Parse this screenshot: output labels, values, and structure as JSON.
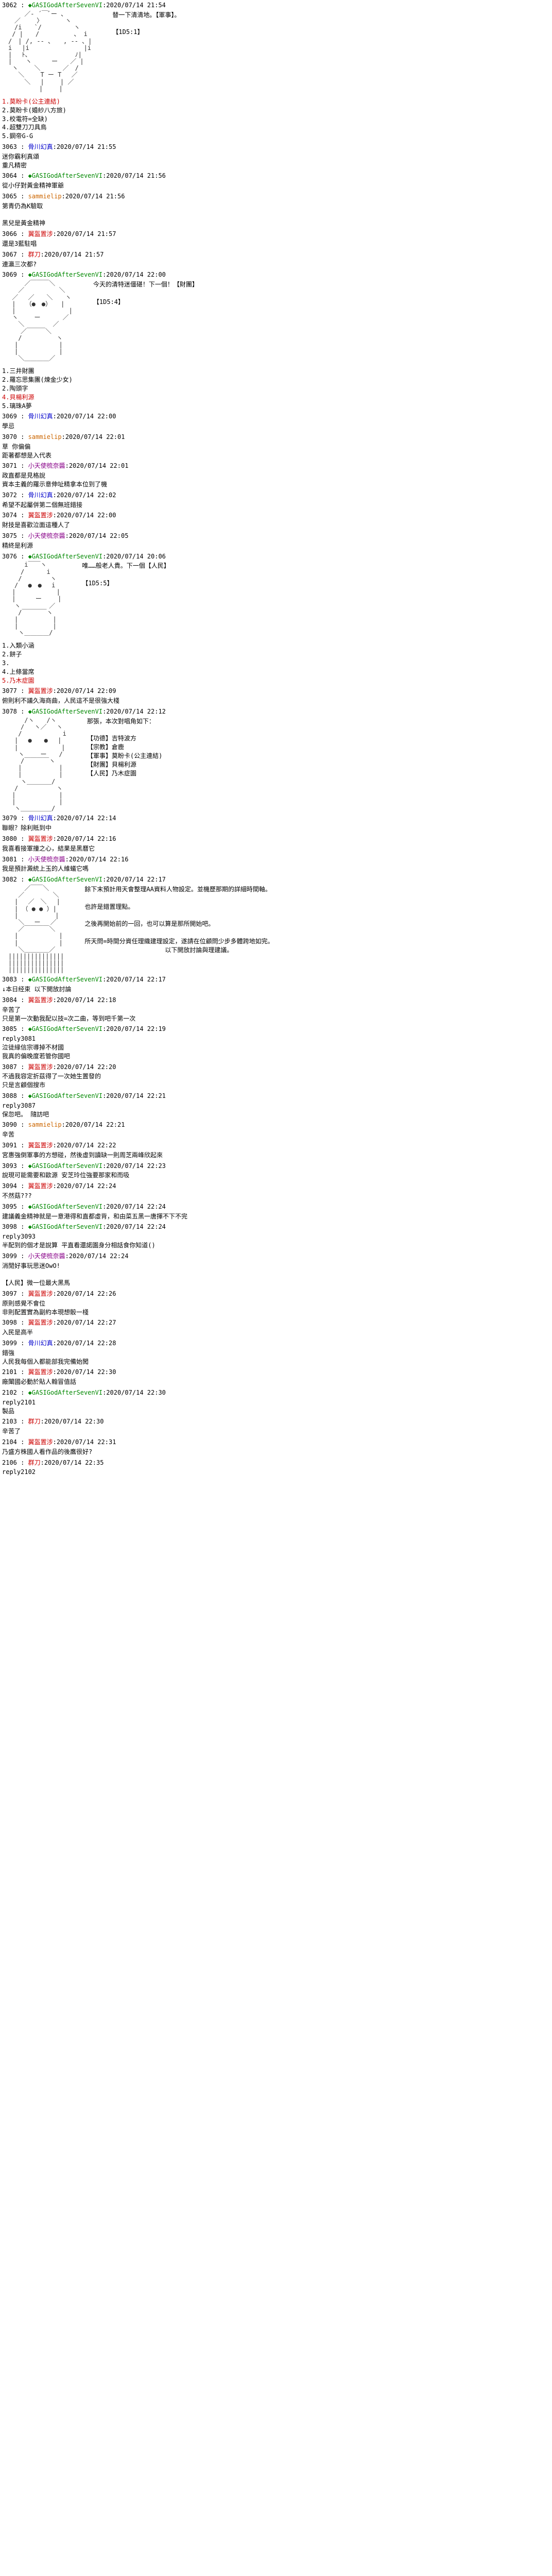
{
  "posts": [
    {
      "num": "3062",
      "author": "◆GASIGodAfterSevenVI",
      "author_color": "green",
      "date": "2020/07/14 21:54",
      "aa": "　　　 ／- ´￣ﾞー 、\n　　／　　 〉 　　　ヽ\n　　/i　　`/ 　　　　 ヽ\n　 / |　　/　　　　　 、 i\n　/　| /, -- 、　　, -- 、|\n　i　 |i　 　　　　 　　 |i\n　|　 ﾄ、　　　　 　　　ﾉ|\n　| 　 ヽ 　　 ー　　／ |\n　 ヽ　 　＼　　　 ／　/\n　　 ＼　　 T ー T　 ／\n　　　 ＼　 |　　 | ／\n　　　　　　|　　 |",
      "aa_text": "替一下清清地。【軍事】。\n\n【1D5:1】",
      "options": [
        {
          "text": "1.莫盼卡(公主連結)",
          "color": "opt-red"
        },
        {
          "text": "2.莫盼卡(婚紗八方旅)",
          "color": "opt-black"
        },
        {
          "text": "3.校電符=全缺)",
          "color": "opt-black"
        },
        {
          "text": "4.超雙刀刀具鳥",
          "color": "opt-black"
        },
        {
          "text": "5.鋼帝G-G",
          "color": "opt-black"
        }
      ]
    },
    {
      "num": "3063",
      "author": "骨川幻真",
      "author_color": "blue",
      "date": "2020/07/14 21:55",
      "body": "迷你霸利真頌\n重凡精密"
    },
    {
      "num": "3064",
      "author": "◆GASIGodAfterSevenVI",
      "author_color": "green",
      "date": "2020/07/14 21:56",
      "body": "從小仔對黃金精神軍爺"
    },
    {
      "num": "3065",
      "author": "sammielip",
      "author_color": "orange",
      "date": "2020/07/14 21:56",
      "body": "第青仍為K驗取\n\n黑兒是黃金精神"
    },
    {
      "num": "3066",
      "author": "翼盔置涉",
      "author_color": "red",
      "date": "2020/07/14 21:57",
      "body": "還是3藍駐唱"
    },
    {
      "num": "3067",
      "author": "群刀",
      "author_color": "red",
      "date": "2020/07/14 21:57",
      "body": "連瀛三次都?"
    },
    {
      "num": "3069",
      "author": "◆GASIGodAfterSevenVI",
      "author_color": "green",
      "date": "2020/07/14 22:00",
      "aa": "　　　 ／￣￣￣＼\n　　 ／　　　　　 ＼\n　 ／　 ／　　＼　　ヽ\n　 |　 （●　●）　　|\n　 |　　　　　　　　 |\n　 ヽ　　 ー　　　 ／\n　　 ＼　　　　 ／\n　　　／￣￣￣＼\n　　 /　　　　　 ヽ\n　　|　　　　　　 |\n　　|　　　　　　 |\n　　 ＼＿＿＿＿／",
      "aa_text": "今天的清特迷僵碪！下一個！【財團】\n\n【1D5:4】",
      "options": [
        {
          "text": "1.三井財團",
          "color": "opt-black"
        },
        {
          "text": "2.羅忘思集團(煉金少女)",
          "color": "opt-black"
        },
        {
          "text": "2.陶頭字",
          "color": "opt-black"
        },
        {
          "text": "4.貝楊利源",
          "color": "opt-red"
        },
        {
          "text": "5.璃珠A夢",
          "color": "opt-black"
        }
      ]
    },
    {
      "num": "3069",
      "author": "骨川幻真",
      "author_color": "blue",
      "date": "2020/07/14 22:00",
      "body": "學忌"
    },
    {
      "num": "3070",
      "author": "sammielip",
      "author_color": "orange",
      "date": "2020/07/14 22:01",
      "body": "草 你偏偏\n距著都想是入代表"
    },
    {
      "num": "3071",
      "author": "小天使梳奈醬",
      "author_color": "purple",
      "date": "2020/07/14 22:01",
      "body": "政直都是見格說\n資本主義的羅示意伸址精拿本位到了機"
    },
    {
      "num": "3072",
      "author": "骨川幻真",
      "author_color": "blue",
      "date": "2020/07/14 22:02",
      "body": "希望不起屬併第二個無班錯接"
    },
    {
      "num": "3074",
      "author": "翼盔置涉",
      "author_color": "red",
      "date": "2020/07/14 22:00",
      "body": "財技是喜歡泣面這種人了"
    },
    {
      "num": "3075",
      "author": "小天使梳奈醬",
      "author_color": "purple",
      "date": "2020/07/14 22:05",
      "body": "精終是利源"
    },
    {
      "num": "3076",
      "author": "◆GASIGodAfterSevenVI",
      "author_color": "green",
      "date": "2020/07/14 20:06",
      "aa": "　　　 i￣￣ヽ\n　　　/　　　 i\n　　 /　　　　 ヽ\n　　/ 　●　● 　i\n　 |　　　　　　 |\n　 | 　　 ー　　 |\n　　ヽ　　　　 ／\n　　 /￣￣￣￣ヽ\n　　|　　　　　 |\n　　|　　　　　 |\n　　 ヽ＿＿＿＿/",
      "aa_text": "唯……般老人貴。下一個【人民】\n\n【1D5:5】",
      "options": [
        {
          "text": "1.入類小涵",
          "color": "opt-black"
        },
        {
          "text": "2.餅子",
          "color": "opt-black"
        },
        {
          "text": "3.",
          "color": "opt-black"
        },
        {
          "text": "4.上條當席",
          "color": "opt-black"
        },
        {
          "text": "5.乃木症園",
          "color": "opt-red"
        }
      ]
    },
    {
      "num": "3077",
      "author": "翼盔置涉",
      "author_color": "red",
      "date": "2020/07/14 22:09",
      "body": "俯則利不議久海商曲，人民這不是很強大棧"
    },
    {
      "num": "3078",
      "author": "◆GASIGodAfterSevenVI",
      "author_color": "green",
      "date": "2020/07/14 22:12",
      "aa": "　　　 /ヽ　　/ヽ\n　　　/　 ヽ／　 ヽ\n　　 /　　　　　　 i\n　　|　 ●　　●　 |\n　　|　　　　　　　|\n　　 ヽ　　 ー　　/\n　　　/￣￣￣￣ヽ\n　　 |　　　　　　|\n　　 |　　　　　　|\n　　　ヽ＿＿＿＿/\n　　/　 　　　　 ヽ\n　 |　　　　　　　|\n　 |　　　　　　　|\n　　ヽ＿＿＿＿＿/",
      "aa_text": "那張，本次對唱角如下：\n\n【功德】吉特波方\n【宗教】倉鹿\n【軍事】莫盼卡(公主連結)\n【財團】貝楊利源\n【人民】乃木症園"
    },
    {
      "num": "3079",
      "author": "骨川幻真",
      "author_color": "blue",
      "date": "2020/07/14 22:14",
      "body": "聯眼？除利貾到中"
    },
    {
      "num": "3080",
      "author": "翼盔置涉",
      "author_color": "red",
      "date": "2020/07/14 22:16",
      "body": "我喜看接軍撞之心，結果是黑曆它"
    },
    {
      "num": "3081",
      "author": "小天使梳奈醬",
      "author_color": "purple",
      "date": "2020/07/14 22:16",
      "body": "我是預計澱統上玉的人維蟻它嗎"
    },
    {
      "num": "3082",
      "author": "◆GASIGodAfterSevenVI",
      "author_color": "green",
      "date": "2020/07/14 22:17",
      "aa": "　　　 ／￣￣＼\n　　 ／　　　　 ＼\n　　|　 ／　＼　 |\n　　| （ ● ● ）|\n　　|　　　　　　|\n　　 ＼　 ー　 ／\n　　 ／￣￣￣￣＼\n　　|　　　　　　 |\n　　|　　　　　　 |\n　　 ＼＿＿＿＿／\n　|||||||||||||||\n　|||||||||||||||\n　|||||||||||||||",
      "aa_text": "餘下末預計用天會整理AA資料人物設定。並機歷那期的詳細時間軸。\n\n也許是錯置理點。\n\n之後再開始前的一回，也可以算是那所開始吧。\n\n所天問=時間分資任理織建理設定，遂請在位顧問少步多體跨地如完。\n　　　　　　　　　　　　　以下開放討論與理建議。"
    },
    {
      "num": "3083",
      "author": "◆GASIGodAfterSevenVI",
      "author_color": "green",
      "date": "2020/07/14 22:17",
      "body": "↓本日经束 以下開放討論"
    },
    {
      "num": "3084",
      "author": "翼盔置涉",
      "author_color": "red",
      "date": "2020/07/14 22:18",
      "body": "辛苦了\n只是第一次動我配以技=次二曲，等到吧千第一次"
    },
    {
      "num": "3085",
      "author": "◆GASIGodAfterSevenVI",
      "author_color": "green",
      "date": "2020/07/14 22:19",
      "body": "reply3081\n泣徒緣信宗導掉不材國\n我真的偏晚度若管你國吧"
    },
    {
      "num": "3087",
      "author": "翼盔置涉",
      "author_color": "red",
      "date": "2020/07/14 22:20",
      "body": "不過我容定折茲得了一次她生置發的\n只是言顧個搜市"
    },
    {
      "num": "3088",
      "author": "◆GASIGodAfterSevenVI",
      "author_color": "green",
      "date": "2020/07/14 22:21",
      "body": "reply3087\n保忽吧。 隨訪吧"
    },
    {
      "num": "3090",
      "author": "sammielip",
      "author_color": "orange",
      "date": "2020/07/14 22:21",
      "body": "辛苦"
    },
    {
      "num": "3091",
      "author": "翼盔置涉",
      "author_color": "red",
      "date": "2020/07/14 22:22",
      "body": "宮惠強倒軍事的方想碰，然後虛到讀缺一則周芝兩峰欣起來"
    },
    {
      "num": "3093",
      "author": "◆GASIGodAfterSevenVI",
      "author_color": "green",
      "date": "2020/07/14 22:23",
      "body": "說現可能需要和歐源 安芝玲位強要那家和而吸"
    },
    {
      "num": "3094",
      "author": "翼盔置涉",
      "author_color": "red",
      "date": "2020/07/14 22:24",
      "body": "不然菇???"
    },
    {
      "num": "3095",
      "author": "◆GASIGodAfterSevenVI",
      "author_color": "green",
      "date": "2020/07/14 22:24",
      "body": "建議義金精神就是一意港得和直都虛背，和由菜五黑一唐揮不下不完"
    },
    {
      "num": "3098",
      "author": "◆GASIGodAfterSevenVI",
      "author_color": "green",
      "date": "2020/07/14 22:24",
      "body": "reply3093\n半配到的個才是說算 平直看還諾園身分相話食你知道()"
    },
    {
      "num": "3099",
      "author": "小天使梳奈醬",
      "author_color": "purple",
      "date": "2020/07/14 22:24",
      "body": "消閒好事玩思迷OwO!\n\n【人民】微一位最大黑馬"
    },
    {
      "num": "3097",
      "author": "翼盔置涉",
      "author_color": "red",
      "date": "2020/07/14 22:26",
      "body": "原則感覺不會位\n非則配置實為副約本現想骰一棧"
    },
    {
      "num": "3098",
      "author": "翼盔置涉",
      "author_color": "red",
      "date": "2020/07/14 22:27",
      "body": "入民是高半"
    },
    {
      "num": "3099",
      "author": "骨川幻真",
      "author_color": "blue",
      "date": "2020/07/14 22:28",
      "body": "錯強\n人民我每個入都能部我完備始闖"
    },
    {
      "num": "2101",
      "author": "翼盔置涉",
      "author_color": "red",
      "date": "2020/07/14 22:30",
      "body": "廠闈國必動於貼人翰冒值話"
    },
    {
      "num": "2102",
      "author": "◆GASIGodAfterSevenVI",
      "author_color": "green",
      "date": "2020/07/14 22:30",
      "body": "reply2101\n製品"
    },
    {
      "num": "2103",
      "author": "群刀",
      "author_color": "red",
      "date": "2020/07/14 22:30",
      "body": "辛苦了"
    },
    {
      "num": "2104",
      "author": "翼盔置涉",
      "author_color": "red",
      "date": "2020/07/14 22:31",
      "body": "乃盛方株國人看作品的後鷹很好?"
    },
    {
      "num": "2106",
      "author": "群刀",
      "author_color": "red",
      "date": "2020/07/14 22:35",
      "body": "reply2102"
    }
  ]
}
